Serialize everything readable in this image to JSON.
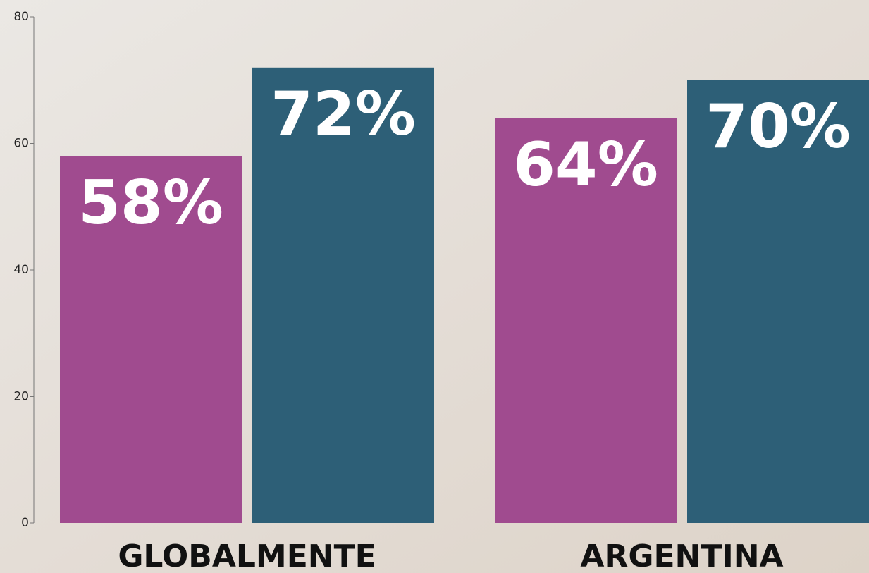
{
  "chart_data": {
    "type": "bar",
    "categories": [
      "GLOBALMENTE",
      "ARGENTINA"
    ],
    "series": [
      {
        "color": "#a04b8f",
        "values": [
          58,
          64
        ],
        "value_labels": [
          "58%",
          "64%"
        ]
      },
      {
        "color": "#2d5f77",
        "values": [
          72,
          70
        ],
        "value_labels": [
          "72%",
          "70%"
        ]
      }
    ],
    "ylim": [
      0,
      80
    ],
    "yticks": [
      0,
      20,
      40,
      60,
      80
    ]
  }
}
